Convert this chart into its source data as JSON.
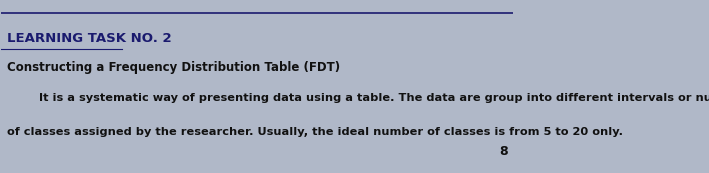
{
  "background_color": "#b0b8c8",
  "title": "LEARNING TASK NO. 2",
  "title_color": "#1a1a6e",
  "title_fontsize": 9.5,
  "title_underline": true,
  "line_color": "#1a1a6e",
  "subtitle": "Constructing a Frequency Distribution Table (FDT)",
  "subtitle_fontsize": 8.5,
  "body_line1": "        It is a systematic way of presenting data using a table. The data are group into different intervals or number",
  "body_line2": "of classes assigned by the researcher. Usually, the ideal number of classes is from 5 to 20 only.",
  "body_fontsize": 8.2,
  "page_number": "8",
  "page_number_fontsize": 9,
  "text_color": "#111111"
}
